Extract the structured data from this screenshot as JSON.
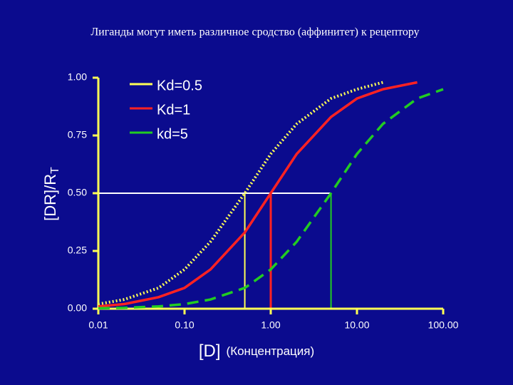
{
  "chart_data": {
    "type": "line",
    "title": "Лиганды могут иметь различное сродство (аффинитет) к рецептору",
    "y_label": "[DR]/R",
    "y_label_subscript": "T",
    "x_label": "[D]",
    "x_label_note": "(Концентрация)",
    "log_x": true,
    "x": [
      0.01,
      0.02,
      0.05,
      0.1,
      0.2,
      0.5,
      1,
      2,
      5,
      10,
      20,
      50,
      100
    ],
    "series": [
      {
        "name": "Kd=0.5",
        "kd": 0.5,
        "color": "#ffff55",
        "style": "dotted",
        "values": [
          0.02,
          0.04,
          0.09,
          0.17,
          0.29,
          0.5,
          0.67,
          0.8,
          0.91,
          0.95,
          0.98,
          null,
          null
        ]
      },
      {
        "name": "Kd=1",
        "kd": 1,
        "color": "#ff2222",
        "style": "solid",
        "values": [
          0.01,
          0.02,
          0.05,
          0.09,
          0.17,
          0.33,
          0.5,
          0.67,
          0.83,
          0.91,
          0.95,
          0.98,
          null
        ]
      },
      {
        "name": "kd=5",
        "kd": 5,
        "color": "#22cc22",
        "style": "dashed",
        "values": [
          0.002,
          0.004,
          0.01,
          0.02,
          0.04,
          0.09,
          0.17,
          0.29,
          0.5,
          0.67,
          0.8,
          0.91,
          0.95
        ]
      }
    ],
    "reference_y": 0.5,
    "xlim": [
      0.01,
      100
    ],
    "xticks": [
      0.01,
      {
        "value": 0.1,
        "label": "0.10"
      },
      {
        "value": 1,
        "label": "1.00"
      },
      {
        "value": 10,
        "label": "10.00"
      },
      {
        "value": 100,
        "label": "100.00"
      }
    ],
    "ylim": [
      0,
      1
    ],
    "yticks": [
      {
        "value": 0,
        "label": "0.00"
      },
      0.25,
      {
        "value": 0.5,
        "label": "0.50"
      },
      0.75,
      {
        "value": 1,
        "label": "1.00"
      }
    ]
  }
}
